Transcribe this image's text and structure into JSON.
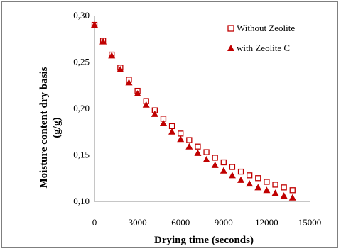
{
  "chart_data": {
    "type": "scatter",
    "title": "",
    "xlabel": "Drying time (seconds)",
    "ylabel_line1": "Moisture content dry basis",
    "ylabel_line2": "(g/g)",
    "xlim": [
      0,
      15000
    ],
    "ylim": [
      0.1,
      0.3
    ],
    "x_ticks": [
      0,
      3000,
      6000,
      9000,
      12000,
      15000
    ],
    "x_tick_labels": [
      "0",
      "3000",
      "6000",
      "9000",
      "12000",
      "15000"
    ],
    "y_ticks": [
      0.1,
      0.15,
      0.2,
      0.25,
      0.3
    ],
    "y_tick_labels": [
      "0,10",
      "0,15",
      "0,20",
      "0,25",
      "0,30"
    ],
    "grid": false,
    "legend_position": "top-right",
    "color": "#c00000",
    "x": [
      0,
      600,
      1200,
      1800,
      2400,
      3000,
      3600,
      4200,
      4800,
      5400,
      6000,
      6600,
      7200,
      7800,
      8400,
      9000,
      9600,
      10200,
      10800,
      11400,
      12000,
      12600,
      13200,
      13800
    ],
    "series": [
      {
        "name": "Without Zeolite",
        "marker": "hollow-square",
        "values": [
          0.29,
          0.273,
          0.258,
          0.244,
          0.231,
          0.219,
          0.208,
          0.198,
          0.189,
          0.181,
          0.173,
          0.166,
          0.159,
          0.153,
          0.147,
          0.142,
          0.137,
          0.132,
          0.128,
          0.125,
          0.121,
          0.118,
          0.115,
          0.112
        ]
      },
      {
        "name": "with Zeolite C",
        "marker": "filled-triangle",
        "values": [
          0.29,
          0.272,
          0.257,
          0.242,
          0.228,
          0.216,
          0.204,
          0.194,
          0.184,
          0.175,
          0.167,
          0.159,
          0.152,
          0.145,
          0.139,
          0.133,
          0.128,
          0.123,
          0.119,
          0.115,
          0.112,
          0.109,
          0.106,
          0.104
        ]
      }
    ]
  }
}
